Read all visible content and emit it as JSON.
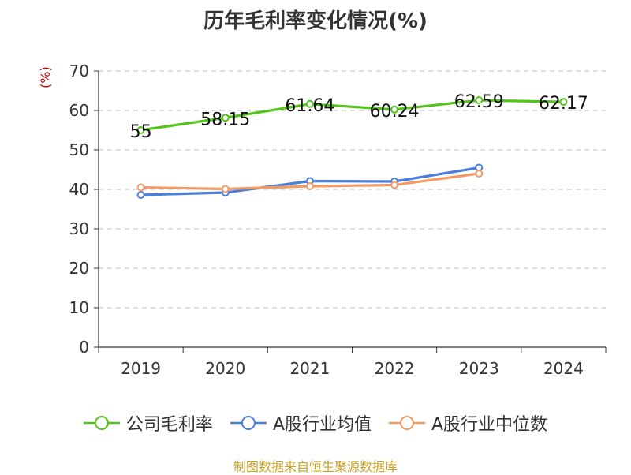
{
  "chart_data": {
    "type": "line",
    "title": "历年毛利率变化情况(%)",
    "ylabel": "(%)",
    "xlabel": "",
    "categories": [
      "2019",
      "2020",
      "2021",
      "2022",
      "2023",
      "2024"
    ],
    "ylim": [
      0,
      70
    ],
    "yticks": [
      0,
      10,
      20,
      30,
      40,
      50,
      60,
      70
    ],
    "grid": true,
    "legend_position": "bottom",
    "series": [
      {
        "name": "公司毛利率",
        "color": "#52c41a",
        "values": [
          55,
          58.15,
          61.64,
          60.24,
          62.59,
          62.17
        ],
        "labels": [
          "55",
          "58.15",
          "61.64",
          "60.24",
          "62.59",
          "62.17"
        ]
      },
      {
        "name": "A股行业均值",
        "color": "#4a7fdc",
        "values": [
          38.6,
          39.2,
          42.1,
          42.0,
          45.5,
          null
        ],
        "labels": []
      },
      {
        "name": "A股行业中位数",
        "color": "#f59a62",
        "values": [
          40.5,
          40.1,
          40.8,
          41.1,
          44.0,
          null
        ],
        "labels": []
      }
    ],
    "source": "制图数据来自恒生聚源数据库"
  }
}
